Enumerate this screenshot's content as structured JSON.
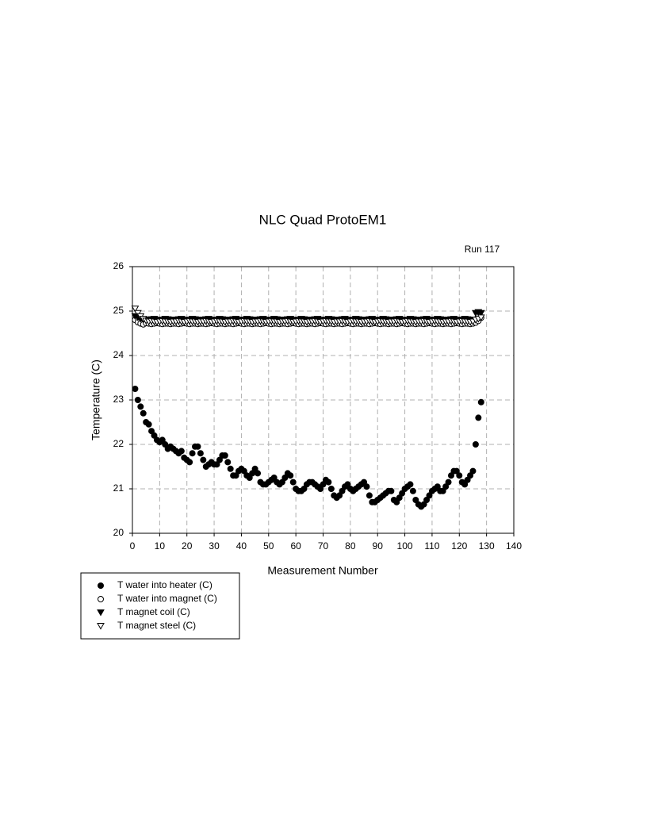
{
  "chart_data": {
    "type": "scatter",
    "title": "NLC Quad ProtoEM1",
    "subtitle": "Run 117",
    "x_label": "Measurement Number",
    "y_label": "Temperature (C)",
    "xlim": [
      0,
      140
    ],
    "xticks": [
      0,
      10,
      20,
      30,
      40,
      50,
      60,
      70,
      80,
      90,
      100,
      110,
      120,
      130,
      140
    ],
    "ylim": [
      20,
      26
    ],
    "yticks": [
      20,
      21,
      22,
      23,
      24,
      25,
      26
    ],
    "grid": true,
    "legend": "bottom-left",
    "x": [
      1,
      2,
      3,
      4,
      5,
      6,
      7,
      8,
      9,
      10,
      11,
      12,
      13,
      14,
      15,
      16,
      17,
      18,
      19,
      20,
      21,
      22,
      23,
      24,
      25,
      26,
      27,
      28,
      29,
      30,
      31,
      32,
      33,
      34,
      35,
      36,
      37,
      38,
      39,
      40,
      41,
      42,
      43,
      44,
      45,
      46,
      47,
      48,
      49,
      50,
      51,
      52,
      53,
      54,
      55,
      56,
      57,
      58,
      59,
      60,
      61,
      62,
      63,
      64,
      65,
      66,
      67,
      68,
      69,
      70,
      71,
      72,
      73,
      74,
      75,
      76,
      77,
      78,
      79,
      80,
      81,
      82,
      83,
      84,
      85,
      86,
      87,
      88,
      89,
      90,
      91,
      92,
      93,
      94,
      95,
      96,
      97,
      98,
      99,
      100,
      101,
      102,
      103,
      104,
      105,
      106,
      107,
      108,
      109,
      110,
      111,
      112,
      113,
      114,
      115,
      116,
      117,
      118,
      119,
      120,
      121,
      122,
      123,
      124,
      125,
      126,
      127,
      128
    ],
    "series": [
      {
        "name": "T water into heater (C)",
        "color": "#000000",
        "marker": "circle",
        "filled": true,
        "values": [
          23.25,
          23.0,
          22.85,
          22.7,
          22.5,
          22.45,
          22.3,
          22.2,
          22.1,
          22.05,
          22.1,
          22.0,
          21.9,
          21.95,
          21.9,
          21.85,
          21.8,
          21.85,
          21.7,
          21.65,
          21.6,
          21.8,
          21.95,
          21.95,
          21.8,
          21.65,
          21.5,
          21.55,
          21.6,
          21.55,
          21.55,
          21.65,
          21.75,
          21.75,
          21.6,
          21.45,
          21.3,
          21.3,
          21.4,
          21.45,
          21.4,
          21.3,
          21.25,
          21.35,
          21.45,
          21.35,
          21.15,
          21.1,
          21.1,
          21.15,
          21.2,
          21.25,
          21.15,
          21.1,
          21.15,
          21.25,
          21.35,
          21.3,
          21.15,
          21.0,
          20.95,
          20.95,
          21.0,
          21.1,
          21.15,
          21.15,
          21.1,
          21.05,
          21.0,
          21.1,
          21.2,
          21.15,
          21.0,
          20.85,
          20.8,
          20.85,
          20.95,
          21.05,
          21.1,
          21.0,
          20.95,
          21.0,
          21.05,
          21.1,
          21.15,
          21.05,
          20.85,
          20.7,
          20.7,
          20.75,
          20.8,
          20.85,
          20.9,
          20.95,
          20.95,
          20.75,
          20.7,
          20.8,
          20.9,
          21.0,
          21.05,
          21.1,
          20.95,
          20.75,
          20.65,
          20.6,
          20.65,
          20.75,
          20.85,
          20.95,
          21.0,
          21.05,
          20.95,
          20.95,
          21.05,
          21.15,
          21.3,
          21.4,
          21.4,
          21.3,
          21.15,
          21.1,
          21.2,
          21.3,
          21.4,
          22.0,
          22.6,
          22.95
        ]
      },
      {
        "name": "T water into magnet (C)",
        "color": "#000000",
        "marker": "circle",
        "filled": false,
        "values": [
          24.8,
          24.75,
          24.72,
          24.7,
          24.73,
          24.72,
          24.71,
          24.72,
          24.73,
          24.72,
          24.71,
          24.72,
          24.72,
          24.71,
          24.72,
          24.72,
          24.71,
          24.72,
          24.73,
          24.72,
          24.71,
          24.72,
          24.72,
          24.71,
          24.72,
          24.72,
          24.71,
          24.72,
          24.73,
          24.72,
          24.71,
          24.72,
          24.72,
          24.71,
          24.72,
          24.72,
          24.71,
          24.72,
          24.73,
          24.72,
          24.71,
          24.72,
          24.72,
          24.71,
          24.72,
          24.72,
          24.71,
          24.72,
          24.73,
          24.72,
          24.71,
          24.72,
          24.72,
          24.71,
          24.72,
          24.72,
          24.71,
          24.72,
          24.73,
          24.72,
          24.71,
          24.72,
          24.72,
          24.71,
          24.72,
          24.72,
          24.71,
          24.72,
          24.73,
          24.72,
          24.71,
          24.72,
          24.72,
          24.71,
          24.72,
          24.72,
          24.71,
          24.72,
          24.73,
          24.72,
          24.71,
          24.72,
          24.72,
          24.71,
          24.72,
          24.72,
          24.71,
          24.72,
          24.73,
          24.72,
          24.71,
          24.72,
          24.72,
          24.71,
          24.72,
          24.72,
          24.71,
          24.72,
          24.73,
          24.72,
          24.71,
          24.72,
          24.72,
          24.71,
          24.72,
          24.72,
          24.71,
          24.72,
          24.73,
          24.72,
          24.71,
          24.72,
          24.72,
          24.71,
          24.72,
          24.72,
          24.71,
          24.72,
          24.73,
          24.72,
          24.71,
          24.72,
          24.72,
          24.71,
          24.72,
          24.74,
          24.78,
          24.85
        ]
      },
      {
        "name": "T magnet coil (C)",
        "color": "#000000",
        "marker": "triangle",
        "filled": true,
        "values": [
          24.88,
          24.85,
          24.82,
          24.8,
          24.8,
          24.8,
          24.81,
          24.82,
          24.8,
          24.79,
          24.8,
          24.82,
          24.81,
          24.8,
          24.8,
          24.8,
          24.81,
          24.82,
          24.8,
          24.79,
          24.8,
          24.82,
          24.81,
          24.8,
          24.8,
          24.8,
          24.81,
          24.82,
          24.8,
          24.79,
          24.8,
          24.82,
          24.81,
          24.8,
          24.8,
          24.8,
          24.81,
          24.82,
          24.8,
          24.79,
          24.8,
          24.82,
          24.81,
          24.8,
          24.8,
          24.8,
          24.81,
          24.82,
          24.8,
          24.79,
          24.8,
          24.82,
          24.81,
          24.8,
          24.8,
          24.8,
          24.81,
          24.82,
          24.8,
          24.79,
          24.8,
          24.82,
          24.81,
          24.8,
          24.8,
          24.8,
          24.81,
          24.82,
          24.8,
          24.79,
          24.8,
          24.82,
          24.81,
          24.8,
          24.8,
          24.8,
          24.81,
          24.82,
          24.8,
          24.79,
          24.8,
          24.82,
          24.81,
          24.8,
          24.8,
          24.8,
          24.81,
          24.82,
          24.8,
          24.79,
          24.8,
          24.82,
          24.81,
          24.8,
          24.8,
          24.8,
          24.81,
          24.82,
          24.8,
          24.79,
          24.8,
          24.82,
          24.81,
          24.8,
          24.8,
          24.8,
          24.81,
          24.82,
          24.8,
          24.79,
          24.8,
          24.82,
          24.81,
          24.8,
          24.8,
          24.8,
          24.81,
          24.82,
          24.8,
          24.79,
          24.8,
          24.82,
          24.81,
          24.8,
          24.8,
          24.95,
          24.97,
          24.95
        ]
      },
      {
        "name": "T magnet steel (C)",
        "color": "#000000",
        "marker": "triangle",
        "filled": false,
        "values": [
          25.05,
          24.95,
          24.88,
          24.82,
          24.78,
          24.76,
          24.77,
          24.76,
          24.75,
          24.76,
          24.77,
          24.76,
          24.76,
          24.75,
          24.76,
          24.76,
          24.77,
          24.76,
          24.75,
          24.76,
          24.77,
          24.76,
          24.76,
          24.75,
          24.76,
          24.76,
          24.77,
          24.76,
          24.75,
          24.76,
          24.77,
          24.76,
          24.76,
          24.75,
          24.76,
          24.76,
          24.77,
          24.76,
          24.75,
          24.76,
          24.77,
          24.76,
          24.76,
          24.75,
          24.76,
          24.76,
          24.77,
          24.76,
          24.75,
          24.76,
          24.77,
          24.76,
          24.76,
          24.75,
          24.76,
          24.76,
          24.77,
          24.76,
          24.75,
          24.76,
          24.77,
          24.76,
          24.76,
          24.75,
          24.76,
          24.76,
          24.77,
          24.76,
          24.75,
          24.76,
          24.77,
          24.76,
          24.76,
          24.75,
          24.76,
          24.76,
          24.77,
          24.76,
          24.75,
          24.76,
          24.77,
          24.76,
          24.76,
          24.75,
          24.76,
          24.76,
          24.77,
          24.76,
          24.75,
          24.76,
          24.77,
          24.76,
          24.76,
          24.75,
          24.76,
          24.76,
          24.77,
          24.76,
          24.75,
          24.76,
          24.77,
          24.76,
          24.76,
          24.75,
          24.76,
          24.76,
          24.77,
          24.76,
          24.75,
          24.76,
          24.77,
          24.76,
          24.76,
          24.75,
          24.76,
          24.76,
          24.77,
          24.76,
          24.75,
          24.76,
          24.77,
          24.76,
          24.76,
          24.75,
          24.76,
          24.8,
          24.82,
          24.85
        ]
      }
    ]
  }
}
